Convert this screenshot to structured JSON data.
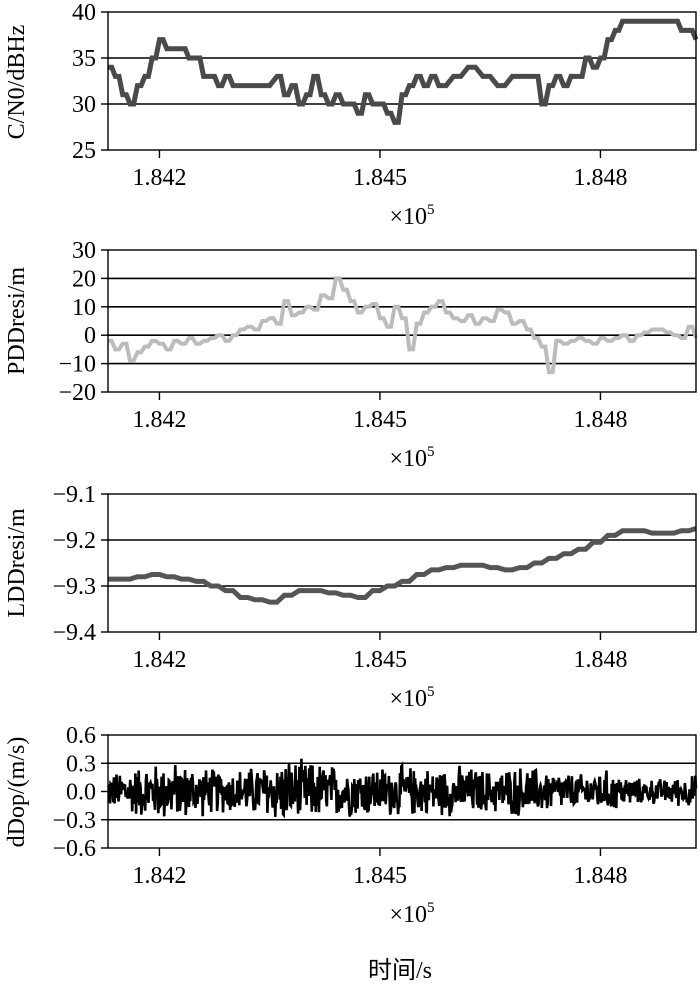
{
  "chart_data": [
    {
      "type": "line",
      "ylabel": "C/N0/dBHz",
      "xlabel": "",
      "x_multiplier": "×10^5",
      "xlim": [
        1.8413,
        1.8493
      ],
      "ylim": [
        25,
        40
      ],
      "xticks": [
        "1.842",
        "1.845",
        "1.848"
      ],
      "xtick_values": [
        1.842,
        1.845,
        1.848
      ],
      "yticks": [
        "25",
        "30",
        "35",
        "40"
      ],
      "ytick_values": [
        25,
        30,
        35,
        40
      ],
      "gridlines_y": [
        30,
        35
      ],
      "series": [
        {
          "color": "#4a4a4a",
          "x": [
            1.8413,
            1.8414,
            1.8415,
            1.8416,
            1.8417,
            1.8418,
            1.8419,
            1.842,
            1.8421,
            1.8422,
            1.8423,
            1.8424,
            1.8425,
            1.8426,
            1.8427,
            1.8428,
            1.8429,
            1.843,
            1.8432,
            1.8434,
            1.8436,
            1.8437,
            1.8438,
            1.8439,
            1.844,
            1.8441,
            1.8442,
            1.8443,
            1.8444,
            1.8445,
            1.8446,
            1.8447,
            1.8448,
            1.8449,
            1.845,
            1.8451,
            1.8452,
            1.8453,
            1.8454,
            1.8455,
            1.8456,
            1.8457,
            1.8458,
            1.846,
            1.8462,
            1.8464,
            1.8466,
            1.8468,
            1.847,
            1.8471,
            1.8472,
            1.8473,
            1.8474,
            1.8475,
            1.8476,
            1.8477,
            1.8478,
            1.8479,
            1.848,
            1.8481,
            1.8482,
            1.8483,
            1.8484,
            1.8485,
            1.8487,
            1.8489,
            1.849,
            1.8491,
            1.8492,
            1.8493
          ],
          "y": [
            34,
            33,
            31,
            30,
            32,
            33,
            35,
            37,
            36,
            36,
            36,
            35,
            35,
            33,
            33,
            32,
            33,
            32,
            32,
            32,
            33,
            31,
            32,
            30,
            31,
            33,
            31,
            30,
            31,
            30,
            30,
            29,
            31,
            30,
            30,
            29,
            28,
            31,
            32,
            33,
            32,
            33,
            32,
            33,
            34,
            33,
            32,
            33,
            33,
            33,
            30,
            32,
            33,
            32,
            33,
            33,
            35,
            34,
            35,
            37,
            38,
            39,
            39,
            39,
            39,
            39,
            39,
            38,
            38,
            37
          ]
        }
      ]
    },
    {
      "type": "line",
      "ylabel": "PDDresi/m",
      "xlabel": "",
      "x_multiplier": "×10^5",
      "xlim": [
        1.8413,
        1.8493
      ],
      "ylim": [
        -20,
        30
      ],
      "xticks": [
        "1.842",
        "1.845",
        "1.848"
      ],
      "xtick_values": [
        1.842,
        1.845,
        1.848
      ],
      "yticks": [
        "−20",
        "−10",
        "0",
        "10",
        "20",
        "30"
      ],
      "ytick_values": [
        -20,
        -10,
        0,
        10,
        20,
        30
      ],
      "gridlines_y": [
        -10,
        0,
        10,
        20
      ],
      "series": [
        {
          "color": "#bcbcbc",
          "x": [
            1.8413,
            1.8414,
            1.8415,
            1.8416,
            1.8417,
            1.8418,
            1.8419,
            1.842,
            1.8421,
            1.8422,
            1.8423,
            1.8424,
            1.8425,
            1.8426,
            1.8427,
            1.8428,
            1.8429,
            1.843,
            1.8431,
            1.8432,
            1.8433,
            1.8434,
            1.8435,
            1.8436,
            1.8437,
            1.8438,
            1.8439,
            1.844,
            1.8441,
            1.8442,
            1.8443,
            1.8444,
            1.8445,
            1.8446,
            1.8447,
            1.8448,
            1.8449,
            1.845,
            1.8451,
            1.8452,
            1.8453,
            1.8454,
            1.8455,
            1.8456,
            1.8457,
            1.8458,
            1.8459,
            1.846,
            1.8461,
            1.8462,
            1.8463,
            1.8464,
            1.8465,
            1.8466,
            1.8467,
            1.8468,
            1.8469,
            1.847,
            1.8471,
            1.8472,
            1.8473,
            1.8474,
            1.8475,
            1.8476,
            1.8477,
            1.8478,
            1.8479,
            1.848,
            1.8481,
            1.8482,
            1.8483,
            1.8484,
            1.8485,
            1.8486,
            1.8487,
            1.8488,
            1.8489,
            1.849,
            1.8491,
            1.8492,
            1.8493
          ],
          "y": [
            -2,
            -5,
            -3,
            -9,
            -6,
            -4,
            -2,
            -3,
            -5,
            -2,
            -3,
            -1,
            -3,
            -2,
            -1,
            0,
            -2,
            0,
            2,
            3,
            2,
            5,
            6,
            4,
            12,
            7,
            8,
            10,
            9,
            14,
            13,
            20,
            16,
            12,
            8,
            10,
            11,
            6,
            3,
            10,
            6,
            -5,
            4,
            8,
            10,
            12,
            8,
            6,
            5,
            7,
            4,
            6,
            5,
            9,
            8,
            4,
            5,
            2,
            -1,
            -4,
            -13,
            -2,
            -3,
            -2,
            -1,
            -2,
            -3,
            -1,
            -2,
            -1,
            0,
            -2,
            0,
            1,
            2,
            2,
            1,
            0,
            -1,
            3,
            -1
          ]
        }
      ]
    },
    {
      "type": "line",
      "ylabel": "LDDresi/m",
      "xlabel": "",
      "x_multiplier": "×10^5",
      "xlim": [
        1.8413,
        1.8493
      ],
      "ylim": [
        -9.4,
        -9.1
      ],
      "xticks": [
        "1.842",
        "1.845",
        "1.848"
      ],
      "xtick_values": [
        1.842,
        1.845,
        1.848
      ],
      "yticks": [
        "−9.4",
        "−9.3",
        "−9.2",
        "−9.1"
      ],
      "ytick_values": [
        -9.4,
        -9.3,
        -9.2,
        -9.1
      ],
      "gridlines_y": [
        -9.3,
        -9.2
      ],
      "series": [
        {
          "color": "#555555",
          "x": [
            1.8413,
            1.8415,
            1.8417,
            1.8419,
            1.8421,
            1.8423,
            1.8425,
            1.8427,
            1.8429,
            1.8431,
            1.8433,
            1.8435,
            1.8437,
            1.8439,
            1.8441,
            1.8443,
            1.8445,
            1.8447,
            1.8449,
            1.8451,
            1.8453,
            1.8455,
            1.8457,
            1.8459,
            1.8461,
            1.8463,
            1.8465,
            1.8467,
            1.8469,
            1.8471,
            1.8473,
            1.8475,
            1.8477,
            1.8479,
            1.8481,
            1.8483,
            1.8485,
            1.8487,
            1.8489,
            1.8491,
            1.8493
          ],
          "y": [
            -9.285,
            -9.285,
            -9.28,
            -9.275,
            -9.28,
            -9.285,
            -9.29,
            -9.3,
            -9.31,
            -9.325,
            -9.33,
            -9.335,
            -9.32,
            -9.31,
            -9.31,
            -9.315,
            -9.32,
            -9.325,
            -9.31,
            -9.3,
            -9.29,
            -9.275,
            -9.265,
            -9.26,
            -9.255,
            -9.255,
            -9.26,
            -9.265,
            -9.26,
            -9.25,
            -9.24,
            -9.23,
            -9.22,
            -9.205,
            -9.19,
            -9.18,
            -9.18,
            -9.185,
            -9.185,
            -9.18,
            -9.175
          ]
        }
      ]
    },
    {
      "type": "line",
      "ylabel": "dDop/(m/s)",
      "xlabel": "时间/s",
      "x_multiplier": "×10^5",
      "xlim": [
        1.8413,
        1.8493
      ],
      "ylim": [
        -0.6,
        0.6
      ],
      "xticks": [
        "1.842",
        "1.845",
        "1.848"
      ],
      "xtick_values": [
        1.842,
        1.845,
        1.848
      ],
      "yticks": [
        "−0.6",
        "−0.3",
        "0.0",
        "0.3",
        "0.6"
      ],
      "ytick_values": [
        -0.6,
        -0.3,
        0.0,
        0.3,
        0.6
      ],
      "gridlines_y": [
        -0.3,
        0.3
      ],
      "series": [
        {
          "color": "#000000",
          "x_range": [
            1.8413,
            1.8493
          ],
          "amplitude_envelope": [
            0.2,
            0.3,
            0.35,
            0.3,
            0.25,
            0.3,
            0.38,
            0.35,
            0.3,
            0.3,
            0.3,
            0.28,
            0.3,
            0.25,
            0.3,
            0.25,
            0.2,
            0.25,
            0.15,
            0.15,
            0.2
          ],
          "mean": 0.0
        }
      ]
    }
  ],
  "x_multiplier_base": "×10",
  "x_multiplier_exp": "5"
}
